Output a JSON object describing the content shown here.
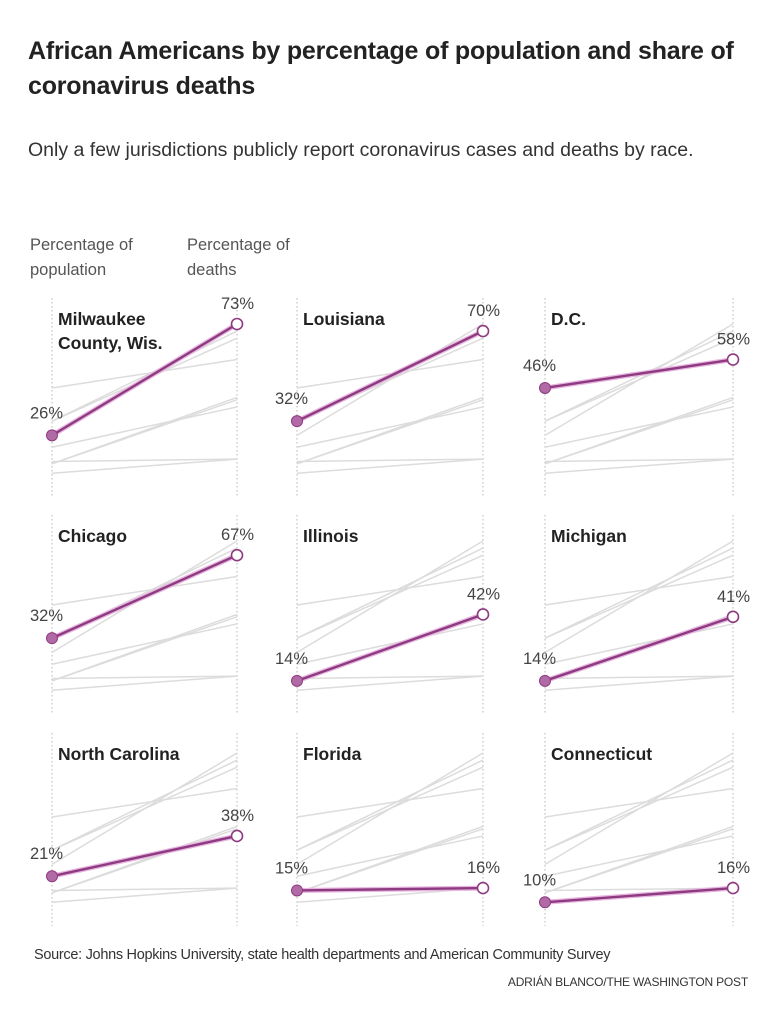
{
  "header": {
    "title": "African Americans by percentage of population and share of coronavirus deaths",
    "subtitle": "Only a few jurisdictions publicly report coronavirus cases and deaths by race."
  },
  "axis_headers": {
    "left": "Percentage of population",
    "right": "Percentage of deaths"
  },
  "footer": {
    "source": "Source: Johns Hopkins University, state health departments and American Community Survey",
    "credit": "ADRIÁN BLANCO/THE WASHINGTON POST"
  },
  "colors": {
    "highlight": "#8e3a80",
    "highlight_glow": "#e7b6e0",
    "background_lines": "#dcdcdc",
    "axis": "#b5b5b5"
  },
  "chart_data": {
    "type": "line",
    "subtype": "small-multiples slopegraph",
    "title": "African Americans by percentage of population and share of coronavirus deaths",
    "x": [
      "Percentage of population",
      "Percentage of deaths"
    ],
    "ylim": [
      0,
      85
    ],
    "unit": "%",
    "series": [
      {
        "name": "Milwaukee County, Wis.",
        "display_lines": [
          "Milwaukee",
          "County, Wis."
        ],
        "values": [
          26,
          73
        ],
        "labels": [
          "26%",
          "73%"
        ]
      },
      {
        "name": "Louisiana",
        "display_lines": [
          "Louisiana"
        ],
        "values": [
          32,
          70
        ],
        "labels": [
          "32%",
          "70%"
        ]
      },
      {
        "name": "D.C.",
        "display_lines": [
          "D.C."
        ],
        "values": [
          46,
          58
        ],
        "labels": [
          "46%",
          "58%"
        ]
      },
      {
        "name": "Chicago",
        "display_lines": [
          "Chicago"
        ],
        "values": [
          32,
          67
        ],
        "labels": [
          "32%",
          "67%"
        ]
      },
      {
        "name": "Illinois",
        "display_lines": [
          "Illinois"
        ],
        "values": [
          14,
          42
        ],
        "labels": [
          "14%",
          "42%"
        ]
      },
      {
        "name": "Michigan",
        "display_lines": [
          "Michigan"
        ],
        "values": [
          14,
          41
        ],
        "labels": [
          "14%",
          "41%"
        ]
      },
      {
        "name": "North Carolina",
        "display_lines": [
          "North Carolina"
        ],
        "values": [
          21,
          38
        ],
        "labels": [
          "21%",
          "38%"
        ]
      },
      {
        "name": "Florida",
        "display_lines": [
          "Florida"
        ],
        "values": [
          15,
          16
        ],
        "labels": [
          "15%",
          "16%"
        ]
      },
      {
        "name": "Connecticut",
        "display_lines": [
          "Connecticut"
        ],
        "values": [
          10,
          16
        ],
        "labels": [
          "10%",
          "16%"
        ]
      }
    ],
    "grid": false,
    "legend": "none"
  }
}
